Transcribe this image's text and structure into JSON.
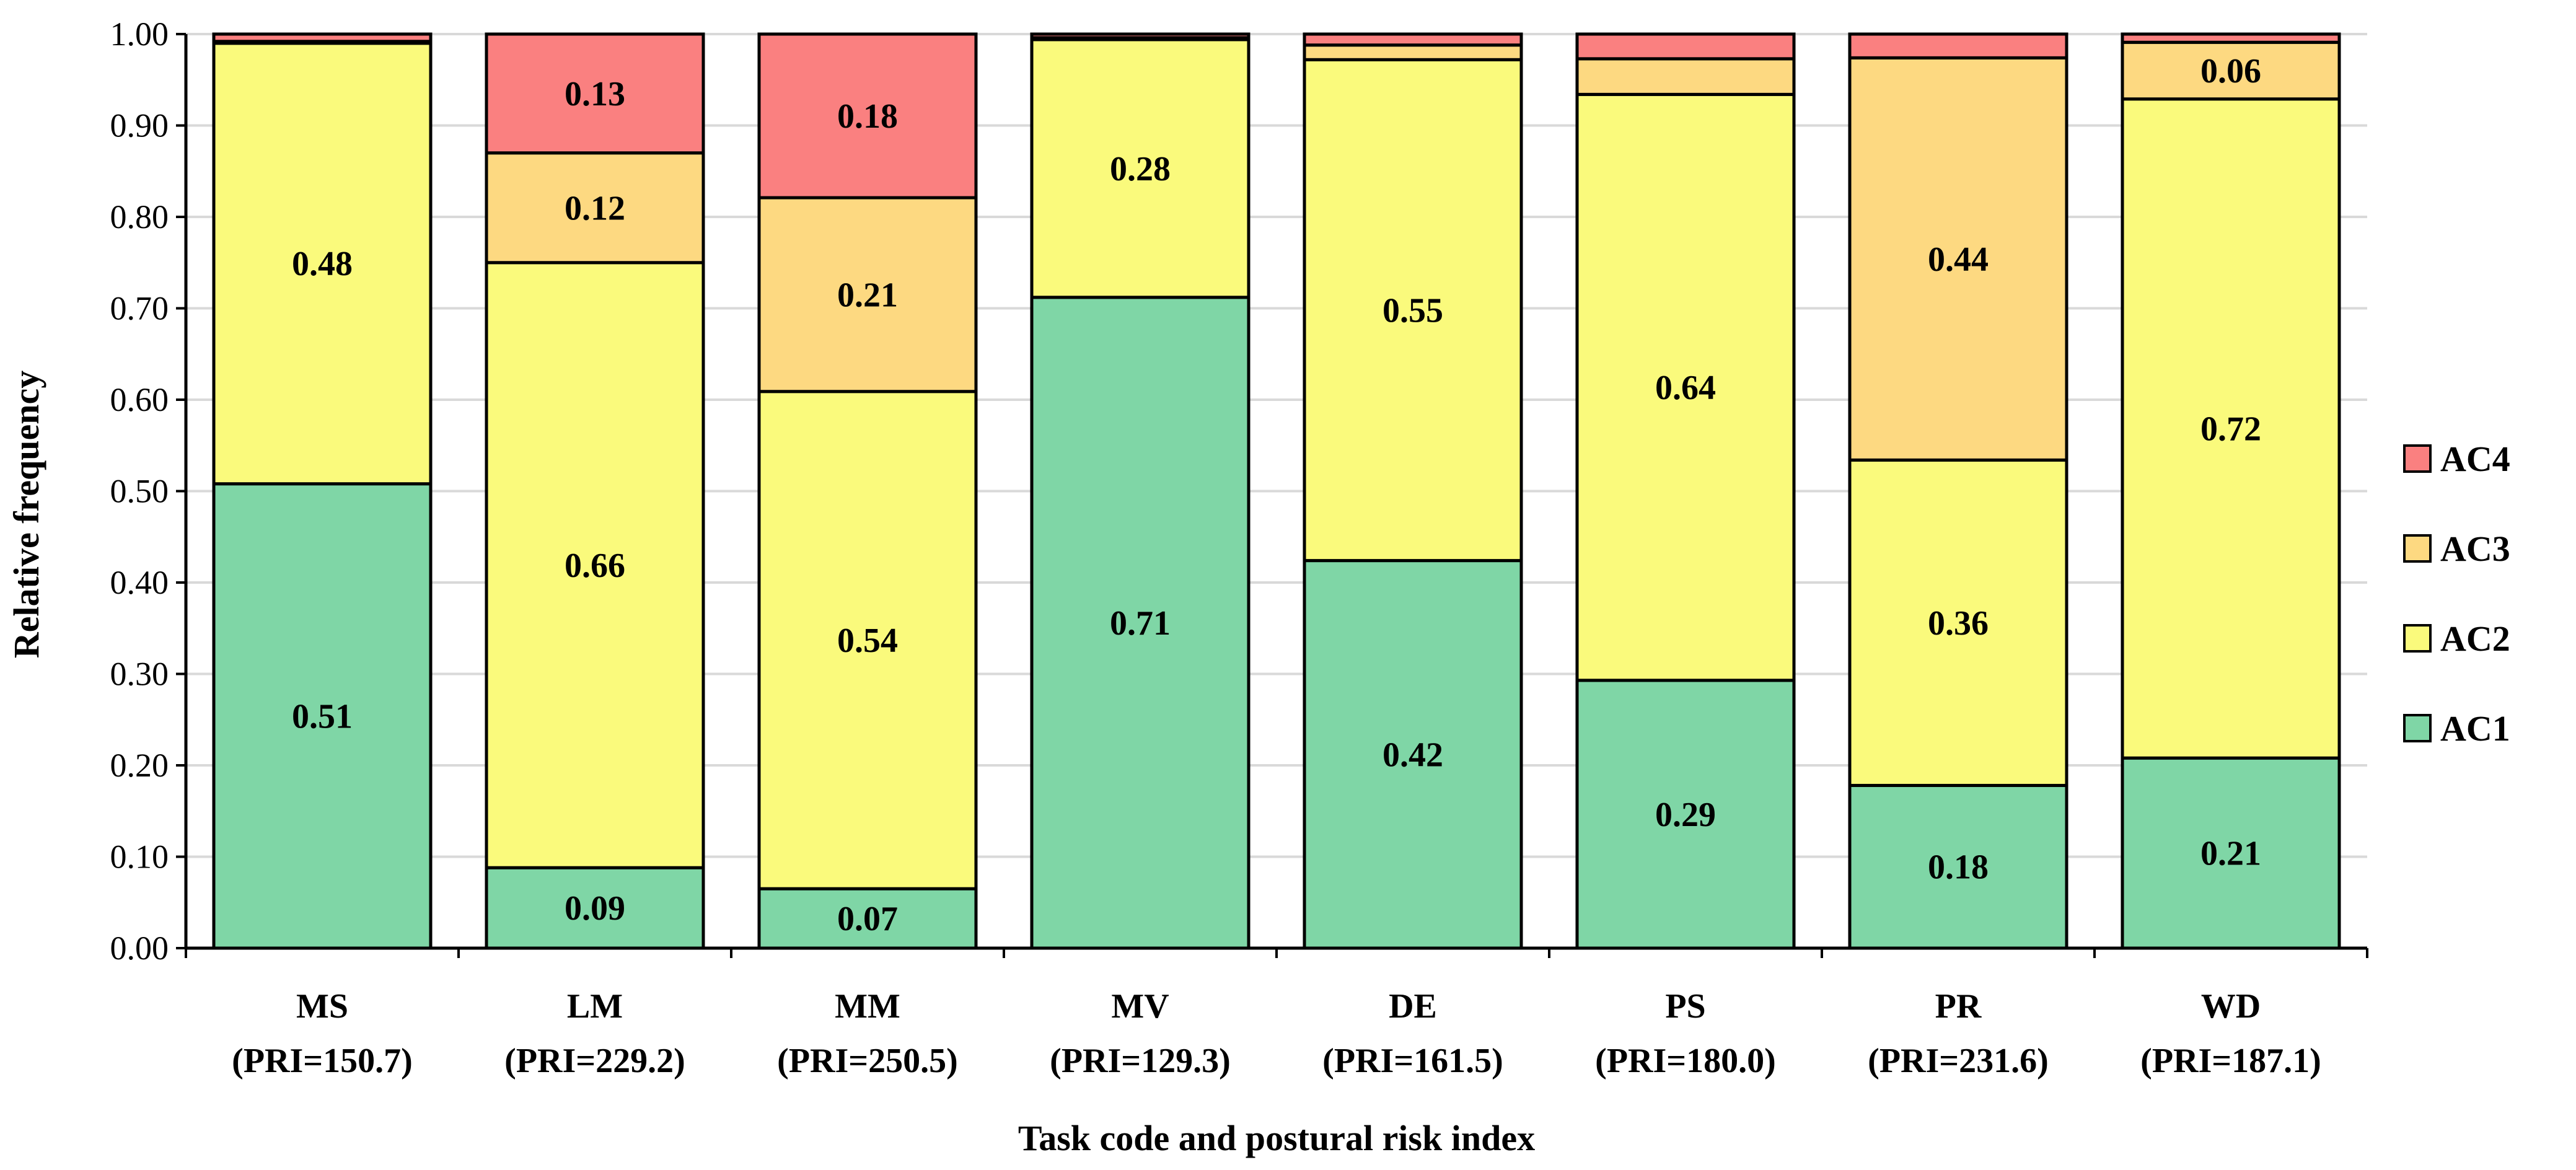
{
  "chart_data": {
    "type": "bar",
    "stacked": true,
    "title": "",
    "xlabel": "Task code and postural risk index",
    "ylabel": "Relative frequency",
    "ylim": [
      0,
      1
    ],
    "ytick_step": 0.1,
    "yticks": [
      "0.00",
      "0.10",
      "0.20",
      "0.30",
      "0.40",
      "0.50",
      "0.60",
      "0.70",
      "0.80",
      "0.90",
      "1.00"
    ],
    "grid": true,
    "legend_position": "right",
    "categories": [
      {
        "code": "MS",
        "pri": "(PRI=150.7)"
      },
      {
        "code": "LM",
        "pri": "(PRI=229.2)"
      },
      {
        "code": "MM",
        "pri": "(PRI=250.5)"
      },
      {
        "code": "MV",
        "pri": "(PRI=129.3)"
      },
      {
        "code": "DE",
        "pri": "(PRI=161.5)"
      },
      {
        "code": "PS",
        "pri": "(PRI=180.0)"
      },
      {
        "code": "PR",
        "pri": "(PRI=231.6)"
      },
      {
        "code": "WD",
        "pri": "(PRI=187.1)"
      }
    ],
    "series": [
      {
        "name": "AC1",
        "color": "#7fd6a6",
        "values": [
          0.508,
          0.088,
          0.065,
          0.712,
          0.424,
          0.293,
          0.178,
          0.208
        ],
        "labels": [
          "0.51",
          "0.09",
          "0.07",
          "0.71",
          "0.42",
          "0.29",
          "0.18",
          "0.21"
        ]
      },
      {
        "name": "AC2",
        "color": "#fafa7c",
        "values": [
          0.482,
          0.662,
          0.544,
          0.282,
          0.548,
          0.641,
          0.356,
          0.721
        ],
        "labels": [
          "0.48",
          "0.66",
          "0.54",
          "0.28",
          "0.55",
          "0.64",
          "0.36",
          "0.72"
        ]
      },
      {
        "name": "AC3",
        "color": "#fdd981",
        "values": [
          0.002,
          0.12,
          0.212,
          0.002,
          0.016,
          0.039,
          0.44,
          0.062
        ],
        "labels": [
          "",
          "0.12",
          "0.21",
          "",
          "",
          "",
          "0.44",
          "0.06"
        ]
      },
      {
        "name": "AC4",
        "color": "#fa8080",
        "values": [
          0.008,
          0.13,
          0.179,
          0.004,
          0.012,
          0.027,
          0.026,
          0.009
        ],
        "labels": [
          "",
          "0.13",
          "0.18",
          "",
          "",
          "",
          "",
          ""
        ]
      }
    ]
  }
}
